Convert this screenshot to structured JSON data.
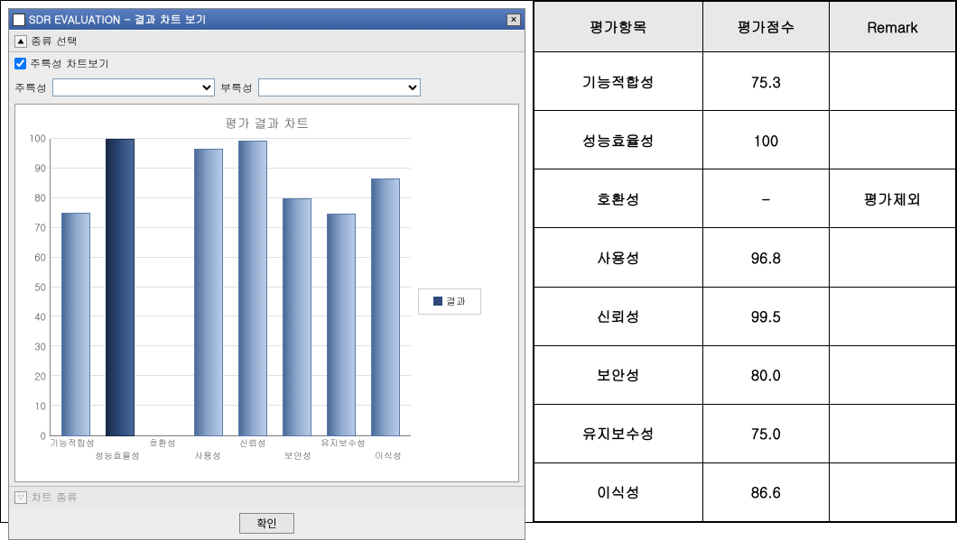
{
  "window": {
    "title": "SDR EVALUATION - 결과 차트 보기",
    "close_label": "×"
  },
  "panels": {
    "type_select": {
      "label": "종류 선택",
      "collapse_icon": "▲"
    },
    "checkbox_label": "주특성 차트보기",
    "checkbox_checked": true,
    "main_label": "주특성",
    "sub_label": "부특성",
    "chart_type": {
      "label": "차트 종류",
      "collapse_icon": "▽"
    }
  },
  "chart": {
    "type": "bar",
    "title": "평가 결과 차트",
    "ylim": [
      0,
      100
    ],
    "ytick_step": 10,
    "yticks": [
      0,
      10,
      20,
      30,
      40,
      50,
      60,
      70,
      80,
      90,
      100
    ],
    "categories": [
      "기능적합성",
      "성능효율성",
      "호환성",
      "사용성",
      "신뢰성",
      "보안성",
      "유지보수성",
      "이식성"
    ],
    "values": [
      75.3,
      100,
      null,
      96.8,
      99.5,
      80.0,
      75.0,
      86.6
    ],
    "bar_color_light_start": "#4a6a9a",
    "bar_color_light_end": "#b8cce8",
    "bar_color_dark_start": "#1a2a4a",
    "bar_color_dark_end": "#4a6a9a",
    "highlight_index": 1,
    "background_color": "#ffffff",
    "grid_color": "#e0e0e0",
    "axis_color": "#888888",
    "label_color": "#555555",
    "legend_label": "결과",
    "legend_swatch": "#2d4a7a",
    "title_fontsize": 14,
    "label_fontsize": 11
  },
  "confirm_button": "확인",
  "table": {
    "headers": [
      "평가항목",
      "평가점수",
      "Remark"
    ],
    "rows": [
      [
        "기능적합성",
        "75.3",
        ""
      ],
      [
        "성능효율성",
        "100",
        ""
      ],
      [
        "호환성",
        "-",
        "평가제외"
      ],
      [
        "사용성",
        "96.8",
        ""
      ],
      [
        "신뢰성",
        "99.5",
        ""
      ],
      [
        "보안성",
        "80.0",
        ""
      ],
      [
        "유지보수성",
        "75.0",
        ""
      ],
      [
        "이식성",
        "86.6",
        ""
      ]
    ]
  }
}
